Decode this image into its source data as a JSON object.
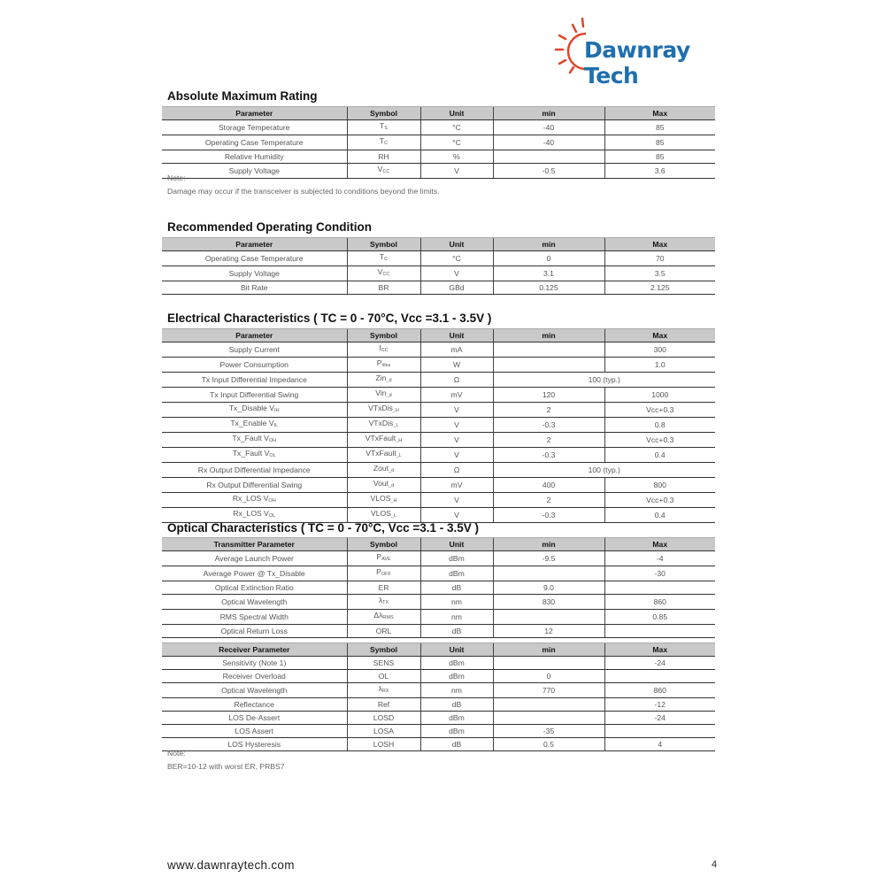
{
  "logo": {
    "text": "Dawnray Tech",
    "sun_color": "#e0452b",
    "text_color": "#1f6fae"
  },
  "columns": [
    "Parameter",
    "Symbol",
    "Unit",
    "min",
    "Max"
  ],
  "sections": [
    {
      "title": "Absolute Maximum Rating",
      "header_first": "Parameter",
      "rows": [
        [
          "Storage Temperature",
          {
            "t": "T",
            "sub": "S"
          },
          "°C",
          "-40",
          "85"
        ],
        [
          "Operating Case Temperature",
          {
            "t": "T",
            "sub": "C"
          },
          "°C",
          "-40",
          "85"
        ],
        [
          "Relative Humidity",
          "RH",
          "%",
          "",
          "85"
        ],
        [
          "Supply Voltage",
          {
            "t": "V",
            "sub": "CC"
          },
          "V",
          "-0.5",
          "3.6"
        ]
      ],
      "note_label": "Note:",
      "note": "Damage may occur if the transceiver is subjected to conditions beyond the limits."
    },
    {
      "title": "Recommended Operating Condition",
      "header_first": "Parameter",
      "rows": [
        [
          "Operating Case Temperature",
          {
            "t": "T",
            "sub": "C"
          },
          "°C",
          "0",
          "70"
        ],
        [
          "Supply Voltage",
          {
            "t": "V",
            "sub": "CC"
          },
          "V",
          "3.1",
          "3.5"
        ],
        [
          "Bit Rate",
          "BR",
          "GBd",
          "0.125",
          "2.125"
        ]
      ]
    },
    {
      "title": "Electrical Characteristics ( TC = 0 - 70°C, Vcc =3.1 - 3.5V )",
      "header_first": "Parameter",
      "rows": [
        [
          "Supply Current",
          {
            "t": "I",
            "sub": "CC"
          },
          "mA",
          "",
          "300"
        ],
        [
          "Power Consumption",
          {
            "t": "P",
            "sub": "diss"
          },
          "W",
          "",
          "1.0"
        ],
        [
          "Tx Input Differential Impedance",
          {
            "t": "Zin",
            "sub": "_d"
          },
          "Ω",
          {
            "t": "100 (typ.)",
            "merged": true
          }
        ],
        [
          "Tx Input Differential Swing",
          {
            "t": "Vin",
            "sub": "_d"
          },
          "mV",
          "120",
          "1000"
        ],
        [
          {
            "t": "Tx_Disable V",
            "sub": "IH"
          },
          {
            "t": "VTxDis",
            "sub": "_H"
          },
          "V",
          "2",
          "Vcc+0.3"
        ],
        [
          {
            "t": "Tx_Enable V",
            "sub": "IL"
          },
          {
            "t": "VTxDis",
            "sub": "_L"
          },
          "V",
          "-0.3",
          "0.8"
        ],
        [
          {
            "t": "Tx_Fault V",
            "sub": "OH"
          },
          {
            "t": "VTxFault",
            "sub": "_H"
          },
          "V",
          "2",
          "Vcc+0.3"
        ],
        [
          {
            "t": "Tx_Fault V",
            "sub": "OL"
          },
          {
            "t": "VTxFault",
            "sub": "_L"
          },
          "V",
          "-0.3",
          "0.4"
        ],
        [
          "Rx Output Differential Impedance",
          {
            "t": "Zout",
            "sub": "_d"
          },
          "Ω",
          {
            "t": "100 (typ.)",
            "merged": true
          }
        ],
        [
          "Rx Output Differential Swing",
          {
            "t": "Vout",
            "sub": "_d"
          },
          "mV",
          "400",
          "800"
        ],
        [
          {
            "t": "Rx_LOS V",
            "sub": "OH"
          },
          {
            "t": "VLOS",
            "sub": "_H"
          },
          "V",
          "2",
          "Vcc+0.3"
        ],
        [
          {
            "t": "Rx_LOS V",
            "sub": "OL"
          },
          {
            "t": "VLOS",
            "sub": "_L"
          },
          "V",
          "-0.3",
          "0.4"
        ]
      ]
    },
    {
      "title": "Optical Characteristics ( TC = 0 - 70°C, Vcc =3.1 - 3.5V )",
      "header_first": "Transmitter Parameter",
      "rows": [
        [
          "Average Launch Power",
          {
            "t": "P",
            "sub": "AVE"
          },
          "dBm",
          "-9.5",
          "-4"
        ],
        [
          "Average Power @ Tx_Disable",
          {
            "t": "P",
            "sub": "OFF"
          },
          "dBm",
          "",
          "-30"
        ],
        [
          "Optical Extinction Ratio",
          "ER",
          "dB",
          "9.0",
          ""
        ],
        [
          "Optical Wavelength",
          {
            "t": "λ",
            "sub": "TX"
          },
          "nm",
          "830",
          "860"
        ],
        [
          "RMS Spectral Width",
          {
            "t": "Δλ",
            "sub": "RMS"
          },
          "nm",
          "",
          "0.85"
        ],
        [
          "Optical Return Loss",
          "ORL",
          "dB",
          "12",
          ""
        ]
      ]
    },
    {
      "title": "",
      "header_first": "Receiver Parameter",
      "rows": [
        [
          "Sensitivity (Note 1)",
          "SENS",
          "dBm",
          "",
          "-24"
        ],
        [
          "Receiver Overload",
          "OL",
          "dBm",
          "0",
          ""
        ],
        [
          "Optical Wavelength",
          {
            "t": "λ",
            "sub": "RX"
          },
          "nm",
          "770",
          "860"
        ],
        [
          "Reflectance",
          "Ref",
          "dB",
          "",
          "-12"
        ],
        [
          "LOS De-Assert",
          "LOSD",
          "dBm",
          "",
          "-24"
        ],
        [
          "LOS Assert",
          "LOSA",
          "dBm",
          "-35",
          ""
        ],
        [
          "LOS Hysteresis",
          "LOSH",
          "dB",
          "0.5",
          "4"
        ]
      ],
      "note_label": "Note:",
      "note": "BER=10-12 with worst ER, PRBS7"
    }
  ],
  "footer": {
    "website": "www.dawnraytech.com",
    "page_number": "4"
  }
}
